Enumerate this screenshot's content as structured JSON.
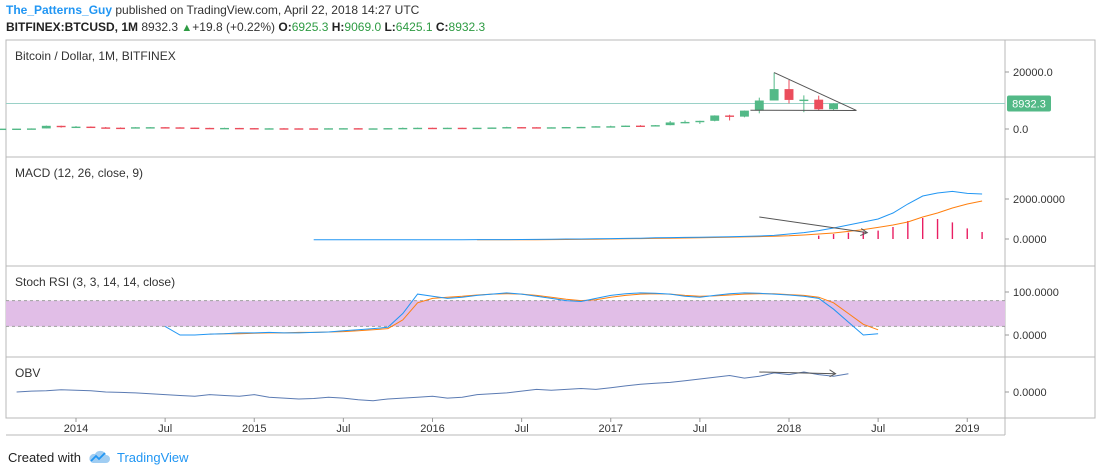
{
  "header": {
    "author": "The_Patterns_Guy",
    "published_text": " published on TradingView.com, April 22, 2018 14:27 UTC",
    "symbol": "BITFINEX:BTCUSD, 1M",
    "last": "8932.3",
    "change": "+19.8 (+0.22%)",
    "open_label": "O:",
    "open": "6925.3",
    "high_label": "H:",
    "high": "9069.0",
    "low_label": "L:",
    "low": "6425.1",
    "close_label": "C:",
    "close": "8932.3"
  },
  "panes": {
    "price": {
      "title": "Bitcoin / Dollar, 1M, BITFINEX",
      "ticks": [
        "20000.0",
        "0.0"
      ],
      "last_label": "8932.3"
    },
    "macd": {
      "title": "MACD (12, 26, close, 9)",
      "ticks": [
        "2000.0000",
        "0.0000"
      ]
    },
    "stoch": {
      "title": "Stoch RSI (3, 3, 14, 14, close)",
      "ticks": [
        "100.0000",
        "0.0000"
      ]
    },
    "obv": {
      "title": "OBV",
      "ticks": [
        "0.0000"
      ]
    }
  },
  "x_axis": {
    "labels": [
      "2014",
      "Jul",
      "2015",
      "Jul",
      "2016",
      "Jul",
      "2017",
      "Jul",
      "2018",
      "Jul",
      "2019"
    ]
  },
  "footer": {
    "created_with": "Created with",
    "brand": "TradingView"
  },
  "colors": {
    "up": "#53b987",
    "down": "#eb4d5c",
    "macd": "#2196f3",
    "signal": "#ff7f0e",
    "hist": "#e91e63",
    "stoch_band": "#e1bee7",
    "obv": "#5b7bb3",
    "line": "#333333"
  },
  "chart_data": [
    {
      "type": "candlestick",
      "title": "Bitcoin / Dollar, 1M, BITFINEX",
      "ylim": [
        -3000,
        24000
      ],
      "x": [
        "2013-08",
        "2013-09",
        "2013-10",
        "2013-11",
        "2013-12",
        "2014-01",
        "2014-02",
        "2014-03",
        "2014-04",
        "2014-05",
        "2014-06",
        "2014-07",
        "2014-08",
        "2014-09",
        "2014-10",
        "2014-11",
        "2014-12",
        "2015-01",
        "2015-02",
        "2015-03",
        "2015-04",
        "2015-05",
        "2015-06",
        "2015-07",
        "2015-08",
        "2015-09",
        "2015-10",
        "2015-11",
        "2015-12",
        "2016-01",
        "2016-02",
        "2016-03",
        "2016-04",
        "2016-05",
        "2016-06",
        "2016-07",
        "2016-08",
        "2016-09",
        "2016-10",
        "2016-11",
        "2016-12",
        "2017-01",
        "2017-02",
        "2017-03",
        "2017-04",
        "2017-05",
        "2017-06",
        "2017-07",
        "2017-08",
        "2017-09",
        "2017-10",
        "2017-11",
        "2017-12",
        "2018-01",
        "2018-02",
        "2018-03",
        "2018-04"
      ],
      "open": [
        100,
        130,
        140,
        200,
        1120,
        730,
        830,
        560,
        460,
        440,
        620,
        640,
        585,
        480,
        390,
        340,
        375,
        318,
        218,
        254,
        244,
        236,
        230,
        263,
        284,
        230,
        236,
        312,
        377,
        430,
        368,
        436,
        415,
        448,
        531,
        672,
        624,
        575,
        608,
        700,
        742,
        963,
        970,
        1190,
        1080,
        1350,
        2300,
        2480,
        2870,
        4740,
        4340,
        6450,
        10000,
        14000,
        10200,
        10300,
        6925
      ],
      "high": [
        130,
        145,
        210,
        1200,
        1170,
        1000,
        900,
        700,
        550,
        630,
        680,
        660,
        600,
        490,
        420,
        450,
        380,
        330,
        260,
        300,
        260,
        245,
        270,
        300,
        285,
        240,
        320,
        500,
        470,
        460,
        440,
        440,
        460,
        550,
        780,
        680,
        620,
        620,
        720,
        750,
        980,
        1150,
        1200,
        1350,
        1400,
        2800,
        3000,
        2900,
        4800,
        5000,
        6500,
        11000,
        19800,
        17200,
        11800,
        11700,
        9069
      ],
      "low": [
        90,
        100,
        120,
        190,
        480,
        700,
        420,
        450,
        360,
        400,
        550,
        560,
        440,
        370,
        280,
        300,
        300,
        150,
        160,
        180,
        210,
        200,
        220,
        250,
        200,
        210,
        230,
        300,
        350,
        350,
        360,
        380,
        410,
        430,
        520,
        560,
        540,
        570,
        600,
        690,
        730,
        750,
        900,
        900,
        1070,
        1300,
        2000,
        1800,
        2700,
        3000,
        4100,
        5500,
        10000,
        9000,
        5900,
        6400,
        6425
      ],
      "close": [
        130,
        140,
        200,
        1120,
        730,
        830,
        560,
        460,
        440,
        620,
        640,
        585,
        480,
        390,
        340,
        375,
        318,
        218,
        254,
        244,
        236,
        230,
        263,
        284,
        230,
        236,
        312,
        377,
        430,
        368,
        436,
        415,
        448,
        531,
        672,
        624,
        575,
        608,
        700,
        742,
        963,
        970,
        1190,
        1080,
        1350,
        2300,
        2480,
        2870,
        4740,
        4340,
        6450,
        10000,
        14000,
        10200,
        10300,
        6925,
        8932
      ]
    },
    {
      "type": "line",
      "title": "MACD (12, 26, close, 9)",
      "ylim": [
        -500,
        2900
      ],
      "x_start": "2015-05",
      "series": [
        {
          "name": "MACD",
          "values": [
            -40,
            -40,
            -40,
            -40,
            -40,
            -40,
            -40,
            -40,
            -40,
            -40,
            -40,
            -30,
            -30,
            -30,
            -25,
            -20,
            -10,
            0,
            0,
            10,
            20,
            30,
            40,
            60,
            70,
            80,
            90,
            100,
            110,
            130,
            150,
            180,
            250,
            320,
            420,
            550,
            700,
            850,
            1000,
            1300,
            1750,
            2150,
            2300,
            2380,
            2280,
            2250
          ]
        },
        {
          "name": "Signal",
          "values": [
            null,
            null,
            null,
            null,
            null,
            null,
            null,
            null,
            null,
            null,
            null,
            -40,
            -40,
            -40,
            -40,
            -35,
            -30,
            -25,
            -20,
            -10,
            0,
            10,
            20,
            30,
            40,
            50,
            60,
            75,
            90,
            105,
            120,
            140,
            160,
            200,
            250,
            300,
            380,
            470,
            580,
            700,
            850,
            1100,
            1300,
            1550,
            1750,
            1900
          ]
        },
        {
          "name": "Histogram",
          "values": [
            null,
            null,
            null,
            null,
            null,
            null,
            null,
            null,
            null,
            null,
            null,
            null,
            null,
            null,
            null,
            null,
            null,
            null,
            null,
            null,
            null,
            null,
            null,
            null,
            null,
            null,
            null,
            null,
            null,
            null,
            null,
            null,
            null,
            null,
            170,
            250,
            320,
            380,
            420,
            600,
            900,
            1050,
            1000,
            830,
            530,
            350
          ]
        }
      ]
    },
    {
      "type": "line",
      "title": "Stoch RSI (3, 3, 14, 14, close)",
      "ylim": [
        -20,
        120
      ],
      "x_start": "2014-07",
      "series": [
        {
          "name": "K",
          "values": [
            20,
            0,
            0,
            2,
            3,
            5,
            5,
            6,
            5,
            5,
            6,
            7,
            10,
            12,
            15,
            18,
            50,
            95,
            90,
            85,
            88,
            92,
            95,
            98,
            95,
            90,
            85,
            80,
            78,
            85,
            92,
            96,
            98,
            97,
            95,
            90,
            88,
            92,
            96,
            98,
            97,
            95,
            93,
            90,
            85,
            60,
            30,
            0,
            3
          ]
        },
        {
          "name": "D",
          "values": [
            null,
            null,
            null,
            2,
            3,
            3,
            4,
            5,
            5,
            6,
            6,
            7,
            8,
            10,
            12,
            15,
            35,
            75,
            85,
            88,
            90,
            93,
            95,
            96,
            95,
            92,
            88,
            83,
            80,
            82,
            88,
            92,
            95,
            96,
            95,
            92,
            90,
            91,
            93,
            95,
            96,
            96,
            94,
            92,
            88,
            75,
            50,
            25,
            12
          ]
        }
      ]
    },
    {
      "type": "line",
      "title": "OBV",
      "x_start": "2013-09",
      "series": [
        {
          "name": "OBV",
          "values": [
            0,
            2,
            3,
            5,
            4,
            3,
            0,
            -1,
            -2,
            -4,
            -6,
            -8,
            -10,
            -6,
            -8,
            -10,
            -6,
            -12,
            -14,
            -16,
            -15,
            -12,
            -14,
            -18,
            -20,
            -16,
            -14,
            -12,
            -10,
            -14,
            -12,
            -6,
            -4,
            -2,
            2,
            6,
            4,
            6,
            8,
            6,
            10,
            14,
            18,
            20,
            22,
            26,
            30,
            34,
            38,
            32,
            36,
            44,
            40,
            46,
            40,
            36,
            42
          ]
        }
      ]
    }
  ]
}
